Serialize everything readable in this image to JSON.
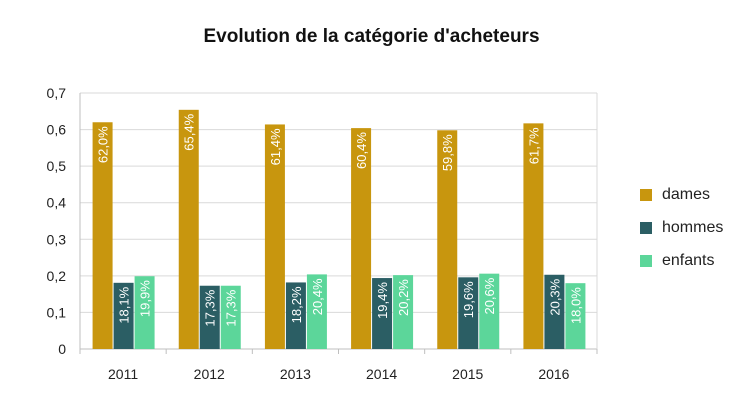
{
  "chart_data": {
    "type": "bar",
    "title": "Evolution de la catégorie d'acheteurs",
    "xlabel": "",
    "ylabel": "",
    "categories": [
      "2011",
      "2012",
      "2013",
      "2014",
      "2015",
      "2016"
    ],
    "ylim": [
      0,
      0.7
    ],
    "yticks": [
      0,
      0.1,
      0.2,
      0.3,
      0.4,
      0.5,
      0.6,
      0.7
    ],
    "ytick_labels": [
      "0",
      "0,1",
      "0,2",
      "0,3",
      "0,4",
      "0,5",
      "0,6",
      "0,7"
    ],
    "grid": true,
    "legend_position": "right",
    "series": [
      {
        "name": "dames",
        "color": "#C8960E",
        "values": [
          0.62,
          0.654,
          0.614,
          0.604,
          0.598,
          0.617
        ],
        "labels": [
          "62,0%",
          "65,4%",
          "61,4%",
          "60,4%",
          "59,8%",
          "61,7%"
        ]
      },
      {
        "name": "hommes",
        "color": "#2B5E64",
        "values": [
          0.181,
          0.173,
          0.182,
          0.194,
          0.196,
          0.203
        ],
        "labels": [
          "18,1%",
          "17,3%",
          "18,2%",
          "19,4%",
          "19,6%",
          "20,3%"
        ]
      },
      {
        "name": "enfants",
        "color": "#5CD69A",
        "values": [
          0.199,
          0.173,
          0.204,
          0.202,
          0.206,
          0.18
        ],
        "labels": [
          "19,9%",
          "17,3%",
          "20,4%",
          "20,2%",
          "20,6%",
          "18,0%"
        ]
      }
    ]
  }
}
